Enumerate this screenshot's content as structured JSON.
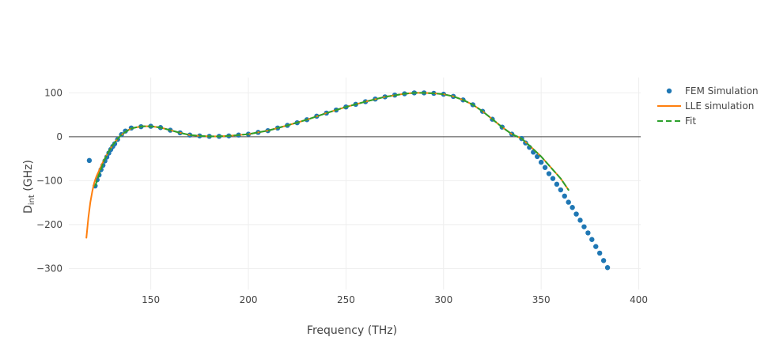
{
  "chart_data": {
    "type": "line",
    "title": "",
    "xlabel": "Frequency (THz)",
    "ylabel_main": "D",
    "ylabel_sub": "int",
    "ylabel_unit": " (GHz)",
    "xlim": [
      108,
      401
    ],
    "ylim": [
      -348,
      135
    ],
    "x_ticks": [
      150,
      200,
      250,
      300,
      350,
      400
    ],
    "y_ticks": [
      100,
      0,
      -100,
      -200,
      -300
    ],
    "x_tick_labels": [
      "150",
      "200",
      "250",
      "300",
      "350",
      "400"
    ],
    "y_tick_labels": [
      "100",
      "0",
      "−100",
      "−200",
      "−300"
    ],
    "grid": true,
    "zero_line": true,
    "legend_position": "top-right",
    "colors": {
      "fem": "#1f77b4",
      "lle": "#ff7f0e",
      "fit": "#2ca02c",
      "grid": "#eeeeee",
      "zero": "#444444"
    },
    "series": [
      {
        "name": "FEM Simulation",
        "mode": "markers",
        "x": [
          118.5,
          121.5,
          122.5,
          123.5,
          124.5,
          125.5,
          126.5,
          127.5,
          128.5,
          129.5,
          130.5,
          131.5,
          133,
          135,
          137,
          140,
          145,
          150,
          155,
          160,
          165,
          170,
          175,
          180,
          185,
          190,
          195,
          200,
          205,
          210,
          215,
          220,
          225,
          230,
          235,
          240,
          245,
          250,
          255,
          260,
          265,
          270,
          275,
          280,
          285,
          290,
          295,
          300,
          305,
          310,
          315,
          320,
          325,
          330,
          335,
          340,
          342,
          344,
          346,
          348,
          350,
          352,
          354,
          356,
          358,
          360,
          362,
          364,
          366,
          368,
          370,
          372,
          374,
          376,
          378,
          380,
          382,
          384
        ],
        "y": [
          -54,
          -112,
          -98,
          -87,
          -75,
          -65,
          -55,
          -46,
          -37,
          -29,
          -22,
          -16,
          -6,
          5,
          13,
          20,
          23,
          24,
          21,
          15,
          9,
          4,
          2,
          1,
          1,
          2,
          4,
          6,
          10,
          14,
          20,
          26,
          32,
          39,
          47,
          54,
          61,
          68,
          74,
          80,
          86,
          91,
          95,
          98,
          100,
          100,
          99,
          97,
          92,
          84,
          73,
          58,
          40,
          22,
          6,
          -4,
          -14,
          -24,
          -35,
          -45,
          -58,
          -70,
          -84,
          -95,
          -108,
          -121,
          -135,
          -149,
          -161,
          -176,
          -190,
          -205,
          -219,
          -234,
          -250,
          -265,
          -282,
          -298
        ]
      },
      {
        "name": "LLE simulation",
        "mode": "lines",
        "x": [
          117,
          118,
          119,
          120,
          121,
          122,
          123,
          124,
          125,
          126,
          128,
          130,
          132,
          134,
          136,
          138,
          140,
          143,
          146,
          150,
          155,
          160,
          165,
          170,
          175,
          180,
          185,
          190,
          195,
          200,
          210,
          220,
          230,
          240,
          250,
          260,
          270,
          280,
          285,
          290,
          295,
          300,
          305,
          310,
          315,
          320,
          325,
          330,
          335,
          340,
          345,
          350,
          355,
          360,
          364
        ],
        "y": [
          -230,
          -185,
          -150,
          -125,
          -105,
          -92,
          -82,
          -72,
          -62,
          -53,
          -37,
          -22,
          -10,
          0,
          8,
          14,
          19,
          22,
          24,
          24,
          21,
          15,
          9,
          4,
          2,
          1,
          1,
          2,
          4,
          6,
          14,
          26,
          39,
          54,
          68,
          80,
          91,
          98,
          100,
          100,
          99,
          97,
          92,
          84,
          73,
          58,
          40,
          22,
          6,
          -4,
          -24,
          -45,
          -70,
          -95,
          -121
        ]
      },
      {
        "name": "Fit",
        "mode": "lines-dash",
        "x": [
          121.5,
          124,
          126,
          128,
          130,
          132,
          134,
          136,
          138,
          140,
          143,
          146,
          150,
          155,
          160,
          165,
          170,
          175,
          180,
          185,
          190,
          195,
          200,
          210,
          220,
          230,
          240,
          250,
          260,
          270,
          280,
          285,
          290,
          295,
          300,
          305,
          310,
          315,
          320,
          325,
          330,
          335,
          340,
          345,
          350,
          355,
          360,
          364
        ],
        "y": [
          -112,
          -80,
          -55,
          -37,
          -22,
          -10,
          0,
          8,
          14,
          19,
          22,
          24,
          24,
          21,
          15,
          9,
          4,
          2,
          1,
          1,
          2,
          4,
          6,
          14,
          26,
          39,
          54,
          68,
          80,
          91,
          98,
          100,
          100,
          99,
          97,
          92,
          84,
          73,
          58,
          40,
          22,
          6,
          -4,
          -24,
          -45,
          -70,
          -95,
          -121
        ]
      }
    ]
  }
}
